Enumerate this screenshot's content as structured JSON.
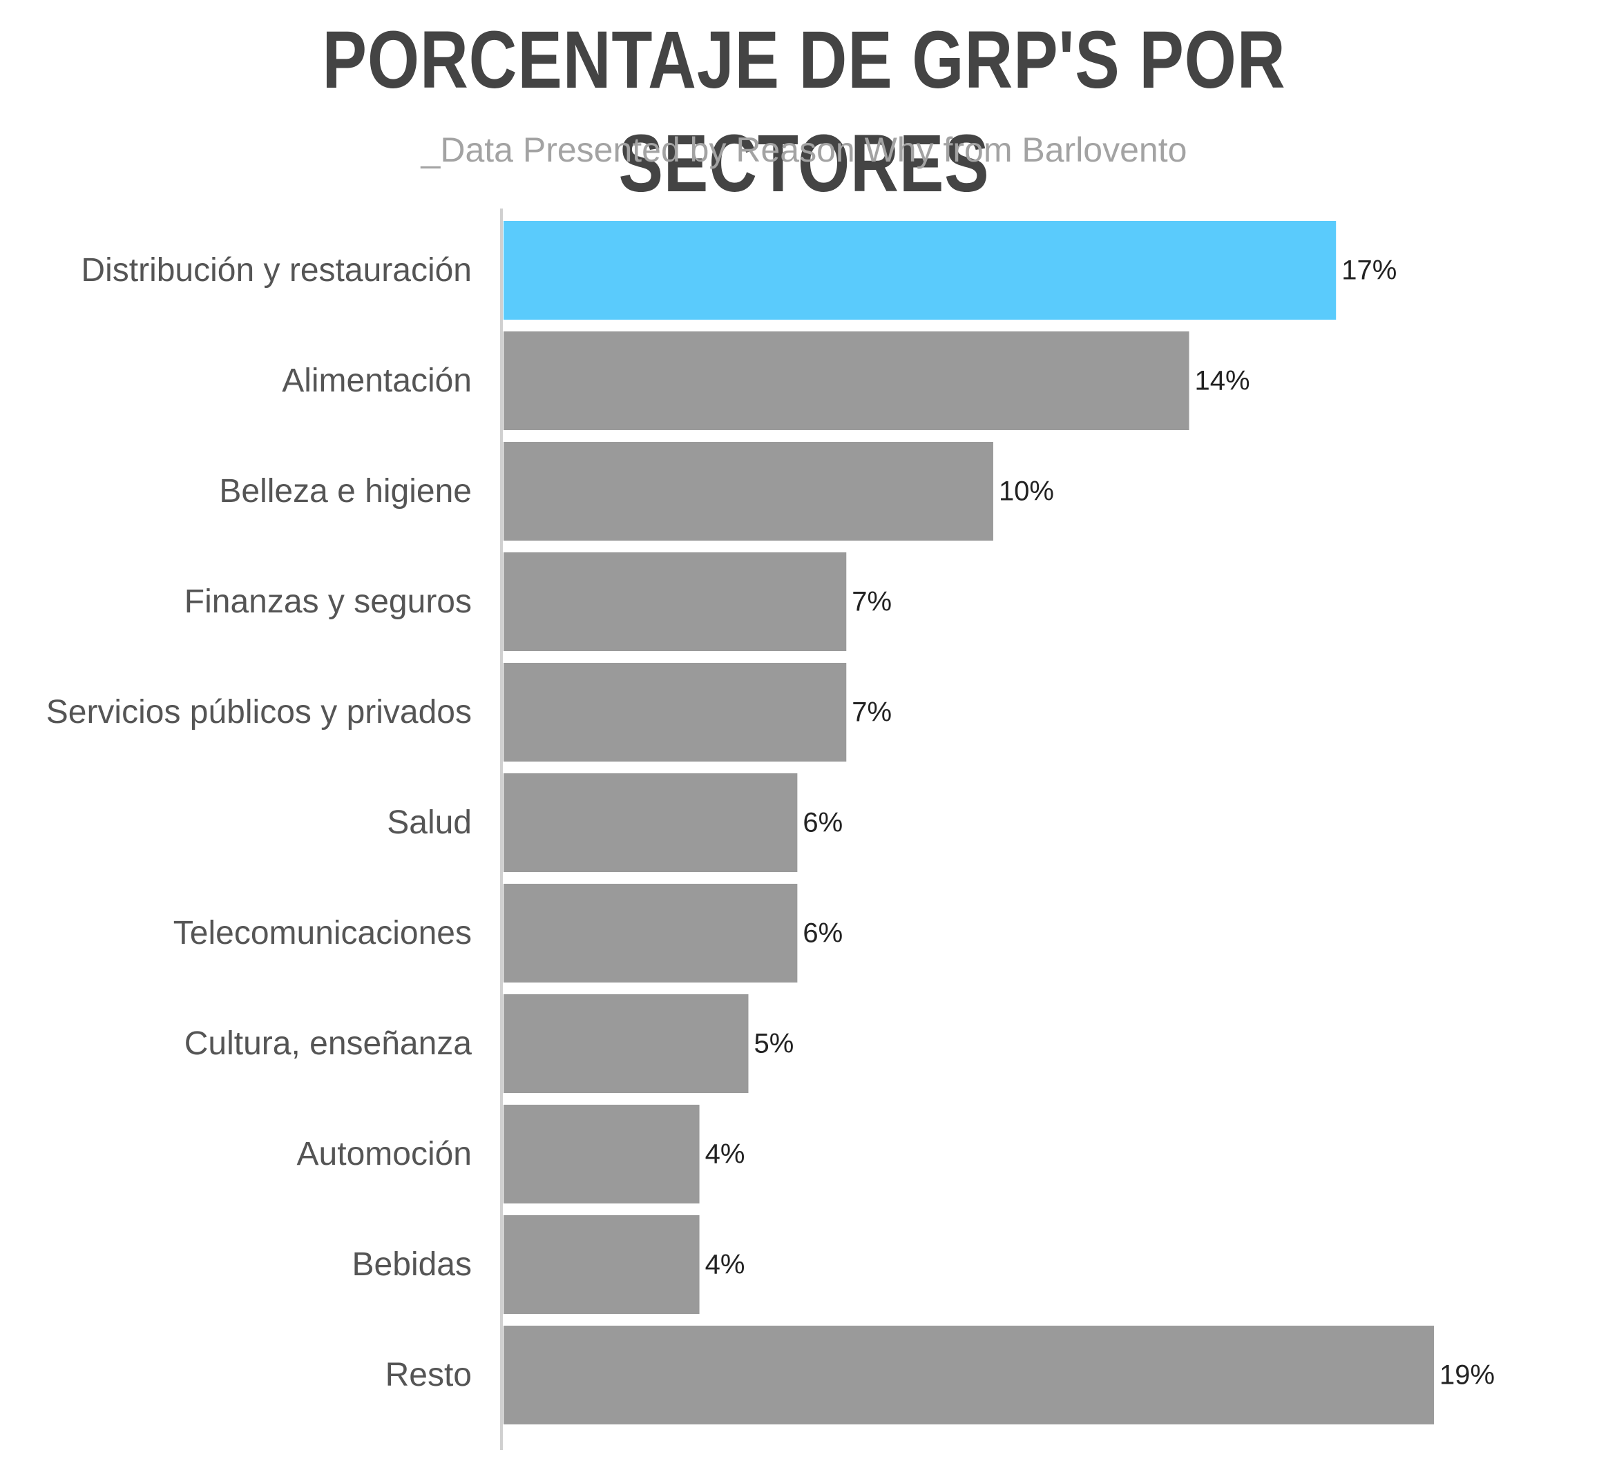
{
  "chart_data": {
    "type": "bar",
    "orientation": "horizontal",
    "title": "PORCENTAJE DE GRP'S POR SECTORES",
    "subtitle": "_Data Presented by Reason Why from Barlovento",
    "categories": [
      "Distribución y restauración",
      "Alimentación",
      "Belleza e higiene",
      "Finanzas y seguros",
      "Servicios públicos y privados",
      "Salud",
      "Telecomunicaciones",
      "Cultura, enseñanza",
      "Automoción",
      "Bebidas",
      "Resto"
    ],
    "values": [
      17,
      14,
      10,
      7,
      7,
      6,
      6,
      5,
      4,
      4,
      19
    ],
    "value_labels": [
      "17%",
      "14%",
      "10%",
      "7%",
      "7%",
      "6%",
      "6%",
      "5%",
      "4%",
      "4%",
      "19%"
    ],
    "unit": "%",
    "highlight_index": 0,
    "colors": {
      "highlight": "#5acbfc",
      "bar": "#9a9a9a",
      "axis": "#d0d0d0",
      "title": "#444444",
      "subtitle": "#a3a3a3",
      "category_label": "#555555",
      "value_label": "#222222"
    },
    "xlim": [
      0,
      19
    ],
    "grid": false,
    "legend": "none"
  }
}
